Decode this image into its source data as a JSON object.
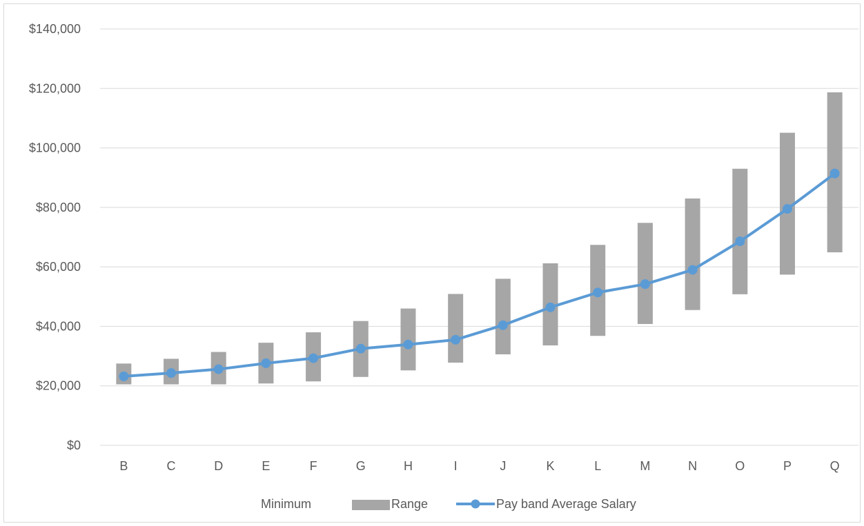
{
  "chart_data": {
    "type": "line",
    "categories": [
      "B",
      "C",
      "D",
      "E",
      "F",
      "G",
      "H",
      "I",
      "J",
      "K",
      "L",
      "M",
      "N",
      "O",
      "P",
      "Q"
    ],
    "series": [
      {
        "name": "Minimum",
        "kind": "stacked-base-hidden",
        "values": [
          20500,
          20500,
          20500,
          20800,
          21500,
          23000,
          25200,
          27800,
          30600,
          33600,
          36800,
          40800,
          45500,
          50800,
          57400,
          64900
        ]
      },
      {
        "name": "Range",
        "kind": "stacked-bar",
        "color": "#a6a6a6",
        "values": [
          7000,
          8600,
          10900,
          13700,
          16500,
          18800,
          20800,
          23100,
          25400,
          27600,
          30600,
          34000,
          37500,
          42200,
          47700,
          53800
        ]
      },
      {
        "name": "Pay band Average Salary",
        "kind": "line",
        "color": "#5b9bd5",
        "values": [
          23200,
          24300,
          25600,
          27600,
          29300,
          32500,
          33900,
          35500,
          40400,
          46400,
          51400,
          54200,
          59000,
          68600,
          79500,
          91400
        ]
      }
    ],
    "y_ticks": [
      "$0",
      "$20,000",
      "$40,000",
      "$60,000",
      "$80,000",
      "$100,000",
      "$120,000",
      "$140,000"
    ],
    "ylim": [
      0,
      140000
    ],
    "y_step": 20000,
    "grid": true,
    "legend_position": "bottom",
    "title": "",
    "xlabel": "",
    "ylabel": ""
  },
  "colors": {
    "grid": "#d9d9d9",
    "text": "#595959",
    "range_bar": "#a6a6a6",
    "line": "#5b9bd5"
  }
}
